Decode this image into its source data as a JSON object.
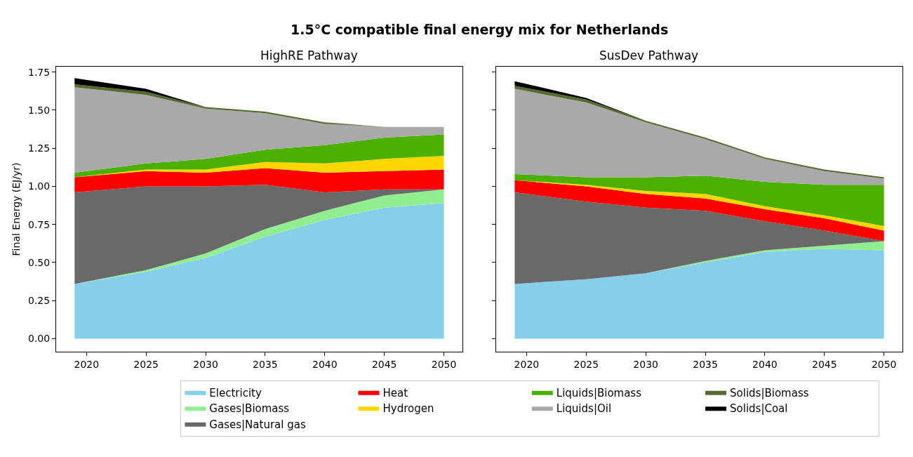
{
  "chart_data": [
    {
      "type": "area",
      "stacked": true,
      "title": "HighRE Pathway",
      "ylabel": "Final Energy (EJ/yr)",
      "annotations": [
        "1.5°C compatible final energy mix for Netherlands"
      ],
      "legend": "bottom",
      "grid": false,
      "x": [
        2019,
        2025,
        2030,
        2035,
        2040,
        2045,
        2050
      ],
      "xlim": [
        2017.45,
        2051.55
      ],
      "xticks": [
        2020,
        2025,
        2030,
        2035,
        2040,
        2045,
        2050
      ],
      "ylim": [
        -0.085,
        1.785
      ],
      "yticks": [
        {
          "value": 0,
          "label": "0.00"
        },
        {
          "value": 0.25,
          "label": "0.25"
        },
        {
          "value": 0.5,
          "label": "0.50"
        },
        {
          "value": 0.75,
          "label": "0.75"
        },
        {
          "value": 1,
          "label": "1.00"
        },
        {
          "value": 1.25,
          "label": "1.25"
        },
        {
          "value": 1.5,
          "label": "1.50"
        },
        {
          "value": 1.75,
          "label": "1.75"
        }
      ],
      "series": [
        {
          "name": "Electricity",
          "color": "#87ceeb",
          "values": [
            0.36,
            0.44,
            0.53,
            0.67,
            0.78,
            0.86,
            0.89
          ]
        },
        {
          "name": "Gases|Biomass",
          "color": "#90ee90",
          "values": [
            0.0,
            0.01,
            0.03,
            0.05,
            0.06,
            0.08,
            0.09
          ]
        },
        {
          "name": "Gases|Natural gas",
          "color": "#696969",
          "values": [
            0.6,
            0.55,
            0.44,
            0.29,
            0.12,
            0.04,
            0.0
          ]
        },
        {
          "name": "Heat",
          "color": "#ff0000",
          "values": [
            0.1,
            0.1,
            0.09,
            0.11,
            0.13,
            0.12,
            0.13
          ]
        },
        {
          "name": "Hydrogen",
          "color": "#ffd700",
          "values": [
            0.0,
            0.01,
            0.02,
            0.04,
            0.06,
            0.08,
            0.09
          ]
        },
        {
          "name": "Liquids|Biomass",
          "color": "#4cb000",
          "values": [
            0.03,
            0.04,
            0.07,
            0.08,
            0.12,
            0.14,
            0.14
          ]
        },
        {
          "name": "Liquids|Oil",
          "color": "#a9a9a9",
          "values": [
            0.56,
            0.45,
            0.33,
            0.24,
            0.14,
            0.07,
            0.05
          ]
        },
        {
          "name": "Solids|Biomass",
          "color": "#556b2f",
          "values": [
            0.02,
            0.02,
            0.01,
            0.01,
            0.01,
            0.0,
            0.0
          ]
        },
        {
          "name": "Solids|Coal",
          "color": "#000000",
          "values": [
            0.04,
            0.02,
            0.0,
            0.0,
            0.0,
            0.0,
            0.0
          ]
        }
      ]
    },
    {
      "type": "area",
      "stacked": true,
      "title": "SusDev Pathway",
      "legend": "bottom",
      "grid": false,
      "tick_labels": "x",
      "x": [
        2019,
        2025,
        2030,
        2035,
        2040,
        2045,
        2050
      ],
      "xlim": [
        2017.45,
        2051.55
      ],
      "xticks": [
        2020,
        2025,
        2030,
        2035,
        2040,
        2045,
        2050
      ],
      "ylim": [
        -0.085,
        1.785
      ],
      "yticks": [
        {
          "value": 0,
          "label": null
        },
        {
          "value": 0.25,
          "label": null
        },
        {
          "value": 0.5,
          "label": null
        },
        {
          "value": 0.75,
          "label": null
        },
        {
          "value": 1,
          "label": null
        },
        {
          "value": 1.25,
          "label": null
        },
        {
          "value": 1.5,
          "label": null
        },
        {
          "value": 1.75,
          "label": null
        }
      ],
      "series": [
        {
          "name": "Electricity",
          "color": "#87ceeb",
          "values": [
            0.36,
            0.39,
            0.43,
            0.5,
            0.57,
            0.59,
            0.58
          ]
        },
        {
          "name": "Gases|Biomass",
          "color": "#90ee90",
          "values": [
            0.0,
            0.0,
            0.0,
            0.01,
            0.01,
            0.02,
            0.06
          ]
        },
        {
          "name": "Gases|Natural gas",
          "color": "#696969",
          "values": [
            0.6,
            0.51,
            0.43,
            0.33,
            0.19,
            0.1,
            0.0
          ]
        },
        {
          "name": "Heat",
          "color": "#ff0000",
          "values": [
            0.08,
            0.1,
            0.09,
            0.08,
            0.08,
            0.08,
            0.07
          ]
        },
        {
          "name": "Hydrogen",
          "color": "#ffd700",
          "values": [
            0.0,
            0.01,
            0.02,
            0.03,
            0.02,
            0.02,
            0.03
          ]
        },
        {
          "name": "Liquids|Biomass",
          "color": "#4cb000",
          "values": [
            0.04,
            0.05,
            0.09,
            0.12,
            0.16,
            0.2,
            0.27
          ]
        },
        {
          "name": "Liquids|Oil",
          "color": "#a9a9a9",
          "values": [
            0.56,
            0.49,
            0.36,
            0.24,
            0.15,
            0.09,
            0.04
          ]
        },
        {
          "name": "Solids|Biomass",
          "color": "#556b2f",
          "values": [
            0.02,
            0.02,
            0.01,
            0.01,
            0.01,
            0.01,
            0.01
          ]
        },
        {
          "name": "Solids|Coal",
          "color": "#000000",
          "values": [
            0.03,
            0.01,
            0.0,
            0.0,
            0.0,
            0.0,
            0.0
          ]
        }
      ]
    }
  ]
}
